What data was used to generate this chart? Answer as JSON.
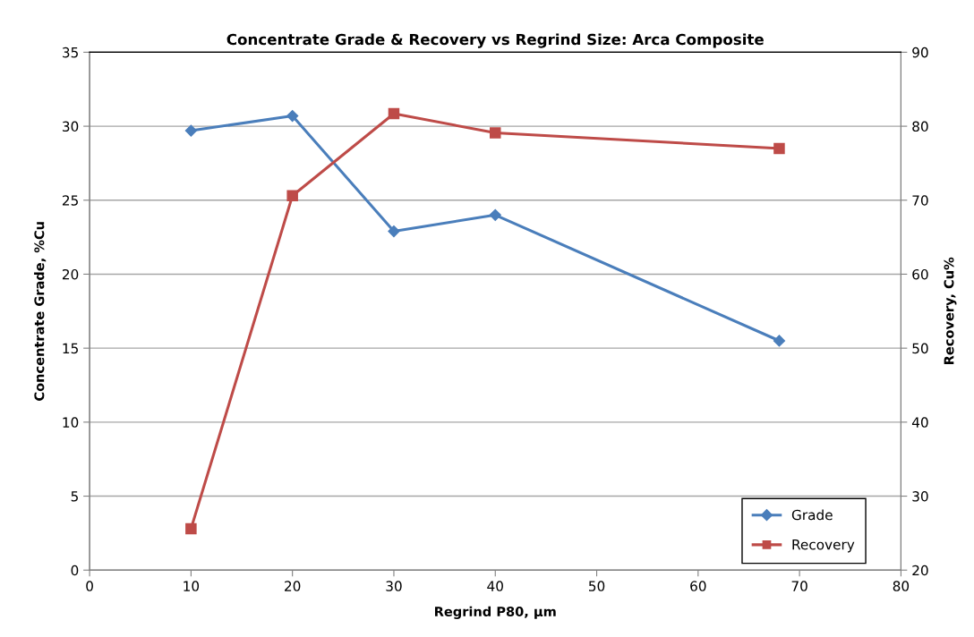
{
  "chart_data": {
    "type": "line",
    "title": "Concentrate Grade & Recovery vs Regrind Size: Arca Composite",
    "xlabel": "Regrind P80, µm",
    "ylabel": "Concentrate Grade, %Cu",
    "y2label": "Recovery, Cu%",
    "x": [
      10,
      20,
      30,
      40,
      68
    ],
    "series": [
      {
        "name": "Grade",
        "color": "#4a7ebb",
        "values": [
          29.7,
          30.7,
          22.9,
          24.0,
          15.5
        ],
        "marker": "diamond"
      },
      {
        "name": "Recovery",
        "color": "#be4b48",
        "values": [
          25.6,
          70.6,
          81.7,
          79.1,
          77.0
        ],
        "marker": "square",
        "axis": "y2"
      }
    ],
    "xlim": [
      0,
      80
    ],
    "xticks": [
      0,
      10,
      20,
      30,
      40,
      50,
      60,
      70,
      80
    ],
    "ylim": [
      0,
      35
    ],
    "yticks": [
      0,
      5,
      10,
      15,
      20,
      25,
      30,
      35
    ],
    "y2lim": [
      20,
      90
    ],
    "y2ticks": [
      20,
      30,
      40,
      50,
      60,
      70,
      80,
      90
    ],
    "grid": "y",
    "legend": "bottom right",
    "line_style": "solid"
  }
}
